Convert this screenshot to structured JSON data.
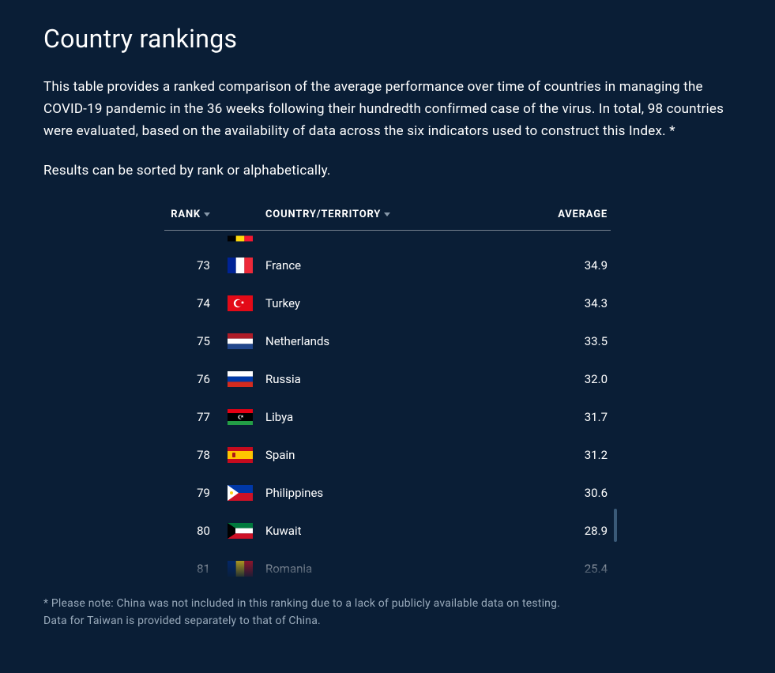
{
  "colors": {
    "background": "#0a1e36",
    "text": "#ffffff",
    "muted": "#99aabb",
    "divider": "rgba(255,255,255,0.25)",
    "scroll_thumb": "#3a5a78"
  },
  "title": "Country rankings",
  "intro": "This table provides a ranked comparison of the average performance over time of countries in managing the COVID-19 pandemic in the 36 weeks following their hundredth confirmed case of the virus. In total, 98 countries were evaluated, based on the availability of data across the six indicators used to construct this Index. *",
  "sort_note": "Results can be sorted by rank or alphabetically.",
  "columns": {
    "rank": "RANK",
    "country": "COUNTRY/TERRITORY",
    "average": "AVERAGE"
  },
  "rows": [
    {
      "rank": "",
      "country": "",
      "average": "",
      "flag": "belgium",
      "partial": "top"
    },
    {
      "rank": "73",
      "country": "France",
      "average": "34.9",
      "flag": "france"
    },
    {
      "rank": "74",
      "country": "Turkey",
      "average": "34.3",
      "flag": "turkey"
    },
    {
      "rank": "75",
      "country": "Netherlands",
      "average": "33.5",
      "flag": "netherlands"
    },
    {
      "rank": "76",
      "country": "Russia",
      "average": "32.0",
      "flag": "russia"
    },
    {
      "rank": "77",
      "country": "Libya",
      "average": "31.7",
      "flag": "libya"
    },
    {
      "rank": "78",
      "country": "Spain",
      "average": "31.2",
      "flag": "spain"
    },
    {
      "rank": "79",
      "country": "Philippines",
      "average": "30.6",
      "flag": "philippines"
    },
    {
      "rank": "80",
      "country": "Kuwait",
      "average": "28.9",
      "flag": "kuwait"
    },
    {
      "rank": "81",
      "country": "Romania",
      "average": "25.4",
      "flag": "romania",
      "partial": "bottom"
    }
  ],
  "footnote_line1": "* Please note: China was not included in this ranking due to a lack of publicly available data on testing.",
  "footnote_line2": " Data for Taiwan is provided separately to that of China."
}
